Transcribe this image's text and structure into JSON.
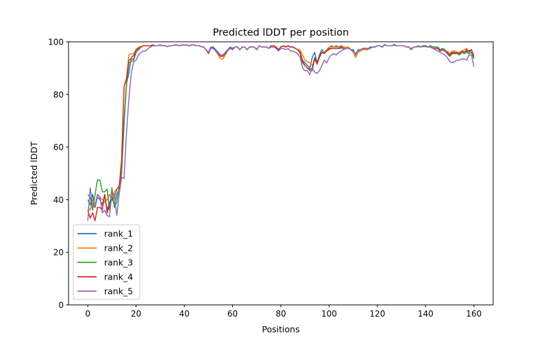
{
  "chart_data": {
    "type": "line",
    "title": "Predicted lDDT per position",
    "xlabel": "Positions",
    "ylabel": "Predicted lDDT",
    "xlim": [
      -8,
      168
    ],
    "ylim": [
      0,
      100
    ],
    "xticks": [
      0,
      20,
      40,
      60,
      80,
      100,
      120,
      140,
      160
    ],
    "yticks": [
      0,
      20,
      40,
      60,
      80,
      100
    ],
    "grid": false,
    "legend": "lower-left",
    "series": [
      {
        "name": "rank_1",
        "color": "#1f77b4",
        "values": [
          40,
          38,
          42,
          37,
          41,
          40,
          38,
          42,
          36,
          39,
          41,
          38,
          42,
          44,
          50,
          68,
          84,
          88,
          94,
          95,
          96,
          97,
          98,
          98.5,
          98.5,
          98.5,
          98.5,
          98.8,
          98.5,
          98.5,
          98.8,
          98.5,
          98.5,
          98.2,
          98.5,
          98.5,
          98.8,
          98.8,
          98.5,
          98.8,
          98.8,
          98.8,
          98.5,
          98.8,
          98.8,
          98.5,
          98.5,
          98.2,
          98,
          97,
          96,
          98,
          98,
          97,
          96,
          95,
          95,
          96,
          97,
          98,
          97.5,
          98,
          98,
          97,
          98,
          98,
          97,
          98,
          98,
          98,
          97,
          98.5,
          98,
          98,
          98,
          97.5,
          98.5,
          98.5,
          98,
          97,
          98,
          98.5,
          98,
          98.5,
          98,
          98,
          97.5,
          97,
          96,
          93,
          92,
          91,
          90,
          94,
          96,
          92,
          95,
          97,
          96,
          97,
          98,
          98.5,
          98,
          98.5,
          98,
          98.5,
          98,
          98,
          98,
          97,
          97,
          95,
          97,
          97,
          97,
          97.5,
          97,
          98,
          98,
          98,
          98.5,
          98.5,
          98,
          99,
          98.5,
          98.5,
          98.5,
          99,
          98.5,
          98.5,
          98.5,
          98.5,
          98,
          98,
          97,
          98,
          98,
          98.5,
          98,
          98.5,
          98.5,
          98,
          98.5,
          98,
          98,
          98,
          97,
          97.5,
          97,
          96,
          95,
          96,
          96,
          96,
          95.5,
          96,
          96,
          96.5,
          96,
          97,
          94
        ]
      },
      {
        "name": "rank_2",
        "color": "#ff7f0e",
        "values": [
          37,
          36,
          40,
          38,
          42,
          41,
          40,
          39,
          40,
          42,
          40,
          43,
          44,
          45,
          52,
          70,
          85,
          95,
          95.5,
          95.5,
          97,
          98,
          98.2,
          98.5,
          98.5,
          98.5,
          98.5,
          98.8,
          98.5,
          98.5,
          98.8,
          98.5,
          98.5,
          98.2,
          98.5,
          98.5,
          98.8,
          98.8,
          98.5,
          98.8,
          98.8,
          98.8,
          98.5,
          98.8,
          98.8,
          98.5,
          98.5,
          98.2,
          98,
          97,
          96,
          97.5,
          97.5,
          96.5,
          95,
          93.5,
          93.5,
          95,
          96.5,
          97.5,
          97,
          98,
          98,
          97,
          98,
          98,
          97,
          98,
          98,
          98,
          97,
          98.5,
          98,
          98,
          98,
          97.5,
          98.5,
          98.5,
          98,
          97,
          98,
          98.5,
          98,
          98.5,
          98,
          98,
          97.5,
          97,
          97,
          95,
          93,
          92.5,
          92,
          91,
          93,
          92,
          94,
          96,
          96,
          97,
          98,
          98,
          98,
          98,
          98,
          98,
          98,
          98,
          98,
          97,
          96,
          94,
          96,
          96.5,
          97,
          97,
          97,
          97.5,
          98,
          98,
          98.5,
          98.5,
          98,
          98.8,
          98.5,
          98.5,
          98.5,
          98.8,
          98.5,
          98.5,
          98.5,
          98.5,
          98,
          98,
          97.5,
          98,
          98,
          98.2,
          98,
          98.2,
          98.2,
          98,
          98,
          97.5,
          97.5,
          97.5,
          96.5,
          97,
          96.5,
          96.5,
          95.5,
          96.5,
          96.5,
          96,
          96,
          96.5,
          97,
          97.5,
          96,
          96,
          95
        ]
      },
      {
        "name": "rank_3",
        "color": "#2ca02c",
        "values": [
          42,
          41,
          36,
          42,
          47.5,
          47.5,
          43,
          43,
          44,
          36,
          44.5,
          37,
          39,
          45,
          50,
          70,
          83,
          92,
          92.5,
          93,
          96,
          97.5,
          98,
          98.5,
          98.5,
          98.5,
          98.5,
          98.8,
          98.5,
          98.5,
          98.8,
          98.5,
          98.5,
          98.2,
          98.5,
          98.5,
          98.8,
          98.8,
          98.5,
          98.8,
          98.8,
          98.8,
          98.5,
          98.8,
          98.8,
          98.5,
          98.5,
          98.2,
          98,
          97,
          96,
          97.5,
          97.5,
          96.5,
          95.5,
          94.5,
          94.5,
          95.5,
          97,
          97.5,
          97,
          98,
          98,
          97,
          98,
          98,
          97,
          98,
          98,
          98,
          97,
          98.5,
          98,
          98,
          98,
          97.5,
          98.5,
          98.5,
          98,
          97,
          98,
          98.5,
          98,
          98.5,
          98,
          98,
          97.5,
          97,
          95.5,
          92,
          91,
          90,
          89,
          89,
          93.5,
          91.5,
          94,
          96,
          95.5,
          96.5,
          97,
          97.5,
          97.5,
          97.5,
          97.5,
          97.5,
          97.5,
          97.5,
          97.5,
          97,
          96.5,
          95.5,
          96.5,
          97,
          97.5,
          97.5,
          97.5,
          97.5,
          98,
          98,
          98.5,
          98.5,
          98,
          98.8,
          98.5,
          98.5,
          98.5,
          98.8,
          98.5,
          98.5,
          98.5,
          98.5,
          98,
          98,
          97,
          98,
          98,
          98.5,
          98,
          98.5,
          98.5,
          98,
          98.5,
          98,
          98,
          98,
          97,
          97,
          96.5,
          95.5,
          94.5,
          95.5,
          95.5,
          95.5,
          95,
          96,
          95.5,
          96,
          95.5,
          96,
          93.5
        ]
      },
      {
        "name": "rank_4",
        "color": "#d62728",
        "values": [
          36,
          33,
          35,
          32,
          37,
          37,
          36,
          42,
          35,
          38,
          40,
          41,
          44,
          45,
          55,
          83,
          86,
          93,
          93.5,
          93.5,
          97,
          97.5,
          98,
          98.5,
          98.5,
          98.5,
          98.5,
          98.8,
          98.5,
          98.5,
          98.8,
          98.5,
          98.5,
          98.2,
          98.5,
          98.5,
          98.8,
          98.8,
          98.5,
          98.8,
          98.8,
          98.8,
          98.5,
          98.8,
          98.8,
          98.5,
          98.5,
          98.2,
          98,
          97,
          95.5,
          97.5,
          97.5,
          96.5,
          95.5,
          94.5,
          94.5,
          95.5,
          97,
          97.5,
          97,
          98,
          98,
          97,
          98,
          98,
          97,
          98,
          98,
          98,
          97,
          98.5,
          98,
          98,
          98,
          97.5,
          98.5,
          98.5,
          98,
          97,
          98,
          98.5,
          98,
          98.5,
          98,
          98,
          97.5,
          97,
          96,
          92.5,
          91,
          90,
          89.5,
          90,
          94,
          91.5,
          94.5,
          96,
          95.5,
          96.5,
          97.5,
          97.5,
          97.5,
          97.5,
          97.5,
          98,
          97.5,
          97.5,
          97.5,
          97,
          96.5,
          95.5,
          96.5,
          97,
          97.5,
          97.5,
          97.5,
          97.5,
          98,
          98,
          98.5,
          98.5,
          98,
          98.8,
          98.5,
          98.5,
          98.5,
          98.8,
          98.5,
          98.5,
          98.5,
          98.5,
          98,
          98,
          97,
          98,
          98,
          98.2,
          98,
          98.2,
          98.2,
          98,
          98,
          97.5,
          97.5,
          97.5,
          96.5,
          97,
          96.5,
          95.5,
          94.5,
          96,
          95.5,
          96,
          95.5,
          96.5,
          96,
          97,
          96.5,
          97,
          94.5
        ]
      },
      {
        "name": "rank_5",
        "color": "#9467bd",
        "values": [
          32,
          44.5,
          38,
          37,
          42,
          41,
          35,
          36,
          34,
          33.5,
          43,
          42,
          34,
          42,
          48.5,
          48,
          65,
          78,
          88,
          92.5,
          93,
          95,
          96,
          96.5,
          96.5,
          97.5,
          98,
          98.5,
          98.5,
          98.5,
          98.8,
          98.5,
          98.5,
          98.2,
          98.5,
          98.5,
          98.8,
          98.8,
          98.5,
          98.8,
          98.8,
          98.8,
          98.5,
          98.8,
          98.8,
          98.5,
          98.5,
          98.2,
          98,
          97,
          96,
          97.5,
          97.5,
          96.5,
          95.5,
          95,
          95,
          95.5,
          97,
          97.5,
          97,
          98,
          98,
          97,
          98,
          98,
          97,
          98,
          98,
          98,
          97,
          98.5,
          98,
          98,
          98,
          97.5,
          98,
          98,
          97.5,
          96.5,
          97.5,
          97.5,
          97,
          97.5,
          96.5,
          96.5,
          96,
          95.5,
          94,
          90,
          89,
          89,
          87.5,
          90,
          88.5,
          88,
          89,
          91,
          93,
          92,
          94,
          95,
          95.5,
          95,
          96,
          96.5,
          97,
          97.5,
          97.5,
          97,
          96.5,
          95.5,
          96.5,
          97,
          97.5,
          97.5,
          97.5,
          97.5,
          98,
          98,
          98.5,
          98.5,
          98,
          98.8,
          98.5,
          98.5,
          98.5,
          98.8,
          98.5,
          98.5,
          98.5,
          98.5,
          98,
          98,
          97,
          98,
          98,
          98.2,
          98,
          98.2,
          98.2,
          98,
          98,
          97.5,
          97,
          96.5,
          96,
          95.5,
          95,
          94,
          92.5,
          92,
          92.5,
          93,
          93,
          93.5,
          93.5,
          93,
          95,
          95,
          90.5
        ]
      }
    ]
  }
}
